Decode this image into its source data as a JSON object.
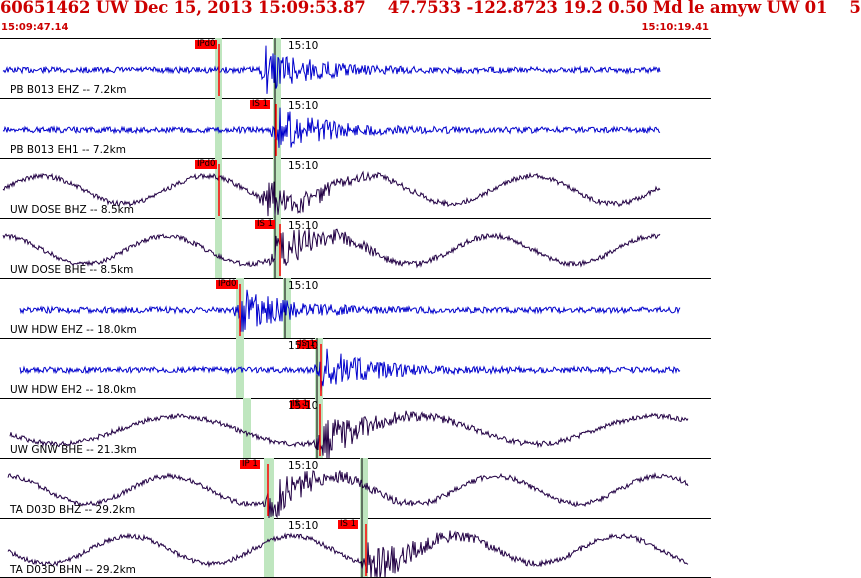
{
  "header": {
    "title": "60651462 UW Dec 15, 2013 15:09:53.87    47.7533 -122.8723 19.2 0.50 Md le amyw UW 01    5",
    "start_time": "15:09:47.14",
    "end_time": "15:10:19.41"
  },
  "colors": {
    "title": "#cc0000",
    "trace_short_period": "#0000cc",
    "trace_broadband": "#220044",
    "pick": "#ff0000",
    "window": "#bfe6bf"
  },
  "tick_label": "15:10",
  "channels": [
    {
      "label": "PB B013 EHZ -- 7.2km",
      "pick": "IPd0",
      "kind": "sp"
    },
    {
      "label": "PB B013 EH1 -- 7.2km",
      "pick": "IS 1",
      "kind": "sp"
    },
    {
      "label": "UW DOSE BHZ -- 8.5km",
      "pick": "IPd0",
      "kind": "bb"
    },
    {
      "label": "UW DOSE BHE -- 8.5km",
      "pick": "IS 1",
      "kind": "bb"
    },
    {
      "label": "UW HDW EHZ -- 18.0km",
      "pick": "IPd0",
      "kind": "sp"
    },
    {
      "label": "UW HDW EH2 -- 18.0km",
      "pick": "IS 1",
      "kind": "sp"
    },
    {
      "label": "UW GNW BHE -- 21.3km",
      "pick": "IS 1",
      "kind": "bb"
    },
    {
      "label": "TA D03D BHZ -- 29.2km",
      "pick": "IP 1",
      "kind": "bb"
    },
    {
      "label": "TA D03D BHN -- 29.2km",
      "pick": "IS 1",
      "kind": "bb"
    }
  ]
}
